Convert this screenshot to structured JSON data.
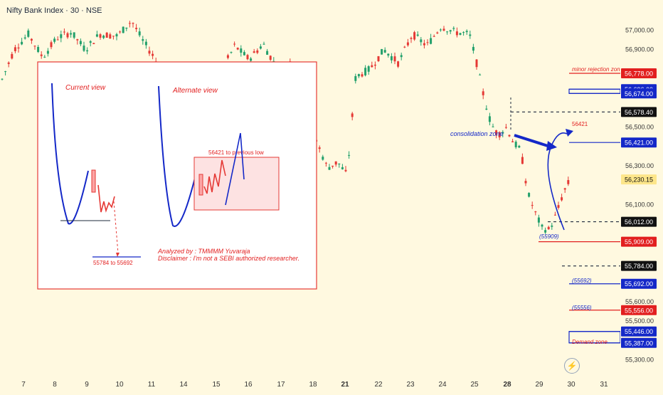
{
  "header": {
    "title": "Nifty Bank Index · 30 · NSE"
  },
  "colors": {
    "up": "#22a06b",
    "down": "#e53935",
    "blue": "#1428c8",
    "red": "#e21f1f",
    "bg": "#fff9e0"
  },
  "icons": {
    "tv_logo": "lightning-icon"
  },
  "chart_data": {
    "type": "candlestick",
    "x_ticks": [
      "7",
      "8",
      "9",
      "10",
      "11",
      "14",
      "15",
      "16",
      "17",
      "18",
      "21",
      "22",
      "23",
      "24",
      "25",
      "28",
      "29",
      "30",
      "31"
    ],
    "y_ticks": [
      "57,000.00",
      "56,900.00",
      "56,500.00",
      "56,300.00",
      "56,100.00",
      "55,600.00",
      "55,500.00",
      "55,300.00"
    ],
    "ylim": [
      55210,
      57090
    ],
    "price_labels": [
      {
        "value": 56778,
        "text": "56,778.00",
        "style": "red"
      },
      {
        "value": 56696,
        "text": "56,696.00",
        "style": "blue"
      },
      {
        "value": 56674,
        "text": "56,674.00",
        "style": "blue"
      },
      {
        "value": 56578.4,
        "text": "56,578.40",
        "style": "black"
      },
      {
        "value": 56421,
        "text": "56,421.00",
        "style": "blue"
      },
      {
        "value": 56230.15,
        "text": "56,230.15",
        "style": "current"
      },
      {
        "value": 56012,
        "text": "56,012.00",
        "style": "black"
      },
      {
        "value": 55909,
        "text": "55,909.00",
        "style": "red"
      },
      {
        "value": 55784,
        "text": "55,784.00",
        "style": "black"
      },
      {
        "value": 55692,
        "text": "55,692.00",
        "style": "blue"
      },
      {
        "value": 55556,
        "text": "55,556.00",
        "style": "red"
      },
      {
        "value": 55446,
        "text": "55,446.00",
        "style": "blue"
      },
      {
        "value": 55387,
        "text": "55,387.00",
        "style": "blue"
      }
    ],
    "annotations": {
      "minor_rejection": "minor rejection zone",
      "consolidation": "consolidation zone",
      "target_56421": "56421",
      "low_55909": "(55909)",
      "lvl_55692": "(55692)",
      "lvl_55556": "(55556)",
      "demand": "Demand zone"
    },
    "inset": {
      "current_view": "Current view",
      "alternate_view": "Alternate view",
      "target_text": "55784 to 55692",
      "box_text": "56421 to previous low",
      "analyzed_by": "Analyzed by : TMMMM Yuvaraja",
      "disclaimer": "Disclaimer : I'm not a SEBI authorized researcher."
    }
  }
}
